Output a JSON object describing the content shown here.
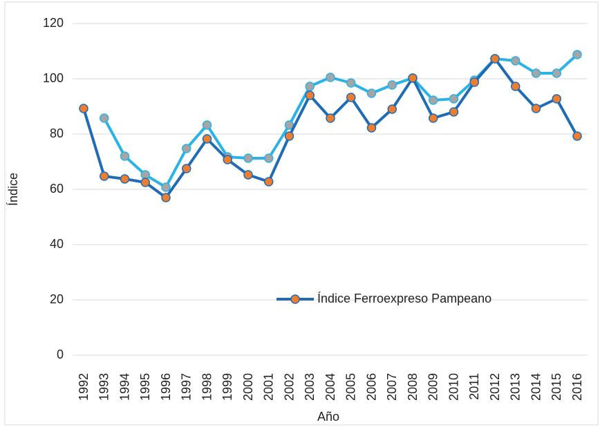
{
  "chart_data": {
    "type": "line",
    "x_label": "Año",
    "y_label": "Índice",
    "categories": [
      "1992",
      "1993",
      "1994",
      "1995",
      "1996",
      "1997",
      "1998",
      "1999",
      "2000",
      "2001",
      "2002",
      "2003",
      "2004",
      "2005",
      "2006",
      "2007",
      "2008",
      "2009",
      "2010",
      "2011",
      "2012",
      "2013",
      "2014",
      "2015",
      "2016"
    ],
    "series": [
      {
        "color": "#2bb3e6",
        "marker_color": "#a5a5a5",
        "values": [
          null,
          85.75,
          72,
          65.25,
          60.75,
          74.75,
          83.25,
          71.75,
          71.25,
          71.25,
          83.25,
          97.25,
          100.5,
          98.5,
          94.75,
          97.75,
          100.25,
          92.25,
          92.75,
          99.5,
          107.25,
          106.5,
          102,
          102,
          108.75
        ]
      },
      {
        "name": "Índice Ferroexpreso Pampeano",
        "color": "#1f6bb5",
        "marker_color": "#ed7d31",
        "values": [
          89.25,
          64.75,
          63.75,
          62.5,
          57,
          67.5,
          78.25,
          70.75,
          65.25,
          62.75,
          79.25,
          94,
          85.75,
          93.25,
          82.25,
          89,
          100.25,
          85.75,
          88,
          98.75,
          107.25,
          97.25,
          89.25,
          92.75,
          79.25
        ]
      }
    ],
    "ylim": [
      0,
      120
    ],
    "yticks": [
      0,
      20,
      40,
      60,
      80,
      100,
      120
    ],
    "grid": true,
    "legend": "center-right"
  }
}
